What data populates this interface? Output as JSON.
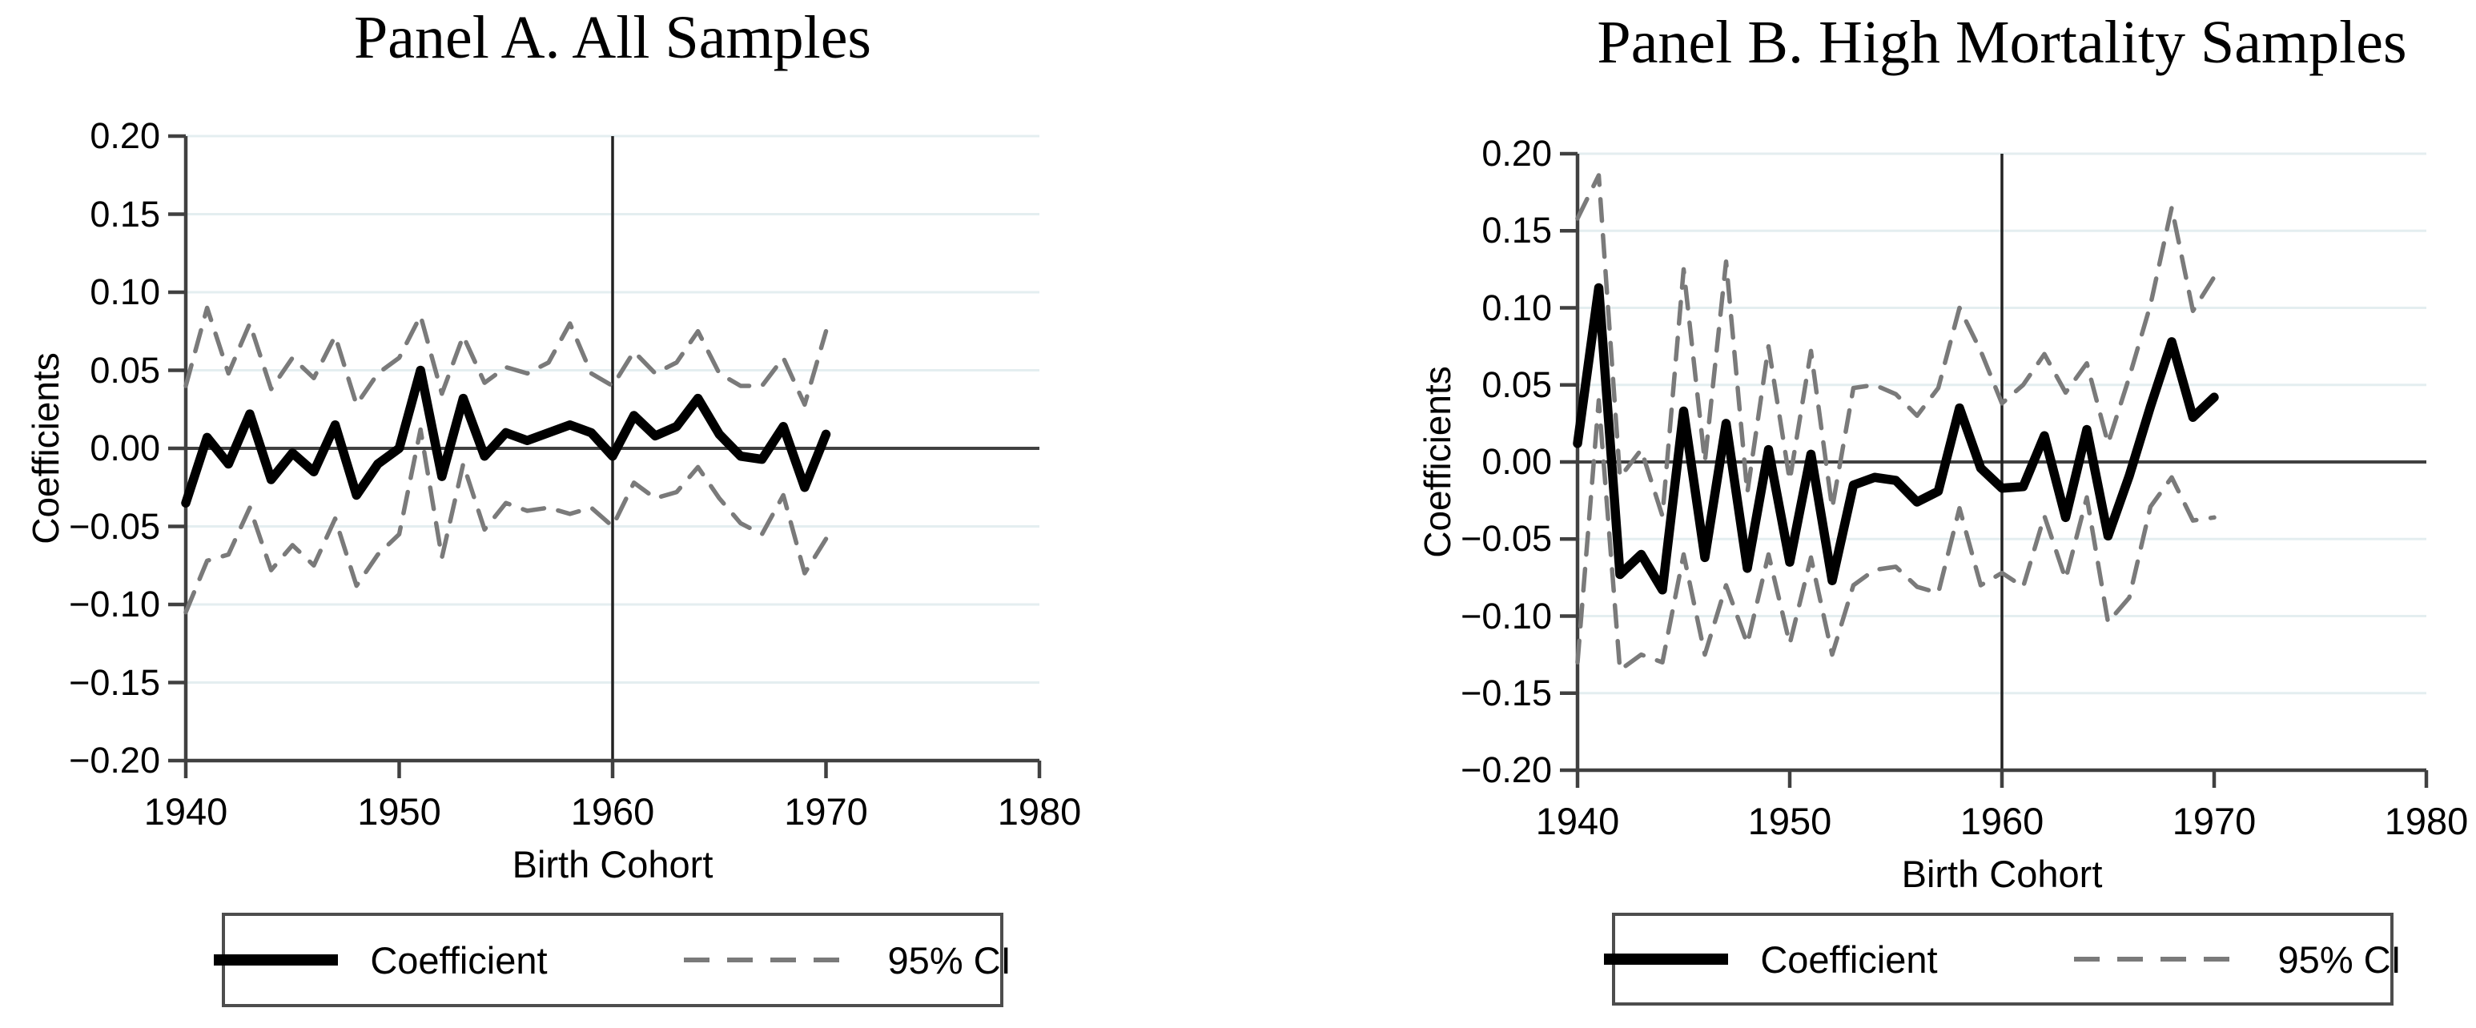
{
  "figure": {
    "background": "#ffffff",
    "accent_colors": {
      "coefficient_line": "#000000",
      "ci_line": "#7a7a7a",
      "axis_line": "#404040",
      "reference_line": "#222222",
      "gridline": "#e4eef0"
    }
  },
  "panels": [
    {
      "title": "Panel A. All Samples",
      "ylabel": "Coefficients",
      "xlabel": "Birth Cohort",
      "y_ticks": [
        "0.20",
        "0.15",
        "0.10",
        "0.05",
        "0.00",
        "−0.05",
        "−0.10",
        "−0.15",
        "−0.20"
      ],
      "x_ticks": [
        "1940",
        "1950",
        "1960",
        "1970",
        "1980"
      ],
      "legend": {
        "coefficient_label": "Coefficient",
        "ci_label": "95% CI"
      }
    },
    {
      "title": "Panel B. High Mortality Samples",
      "ylabel": "Coefficients",
      "xlabel": "Birth Cohort",
      "y_ticks": [
        "0.20",
        "0.15",
        "0.10",
        "0.05",
        "0.00",
        "−0.05",
        "−0.10",
        "−0.15",
        "−0.20"
      ],
      "x_ticks": [
        "1940",
        "1950",
        "1960",
        "1970",
        "1980"
      ],
      "legend": {
        "coefficient_label": "Coefficient",
        "ci_label": "95% CI"
      }
    }
  ],
  "chart_data": [
    {
      "type": "line",
      "title": "Panel A. All Samples",
      "xlabel": "Birth Cohort",
      "ylabel": "Coefficients",
      "xlim": [
        1940,
        1980
      ],
      "ylim": [
        -0.2,
        0.2
      ],
      "x_tick_values": [
        1940,
        1950,
        1960,
        1970,
        1980
      ],
      "y_tick_values": [
        0.2,
        0.15,
        0.1,
        0.05,
        0.0,
        -0.05,
        -0.1,
        -0.15,
        -0.2
      ],
      "grid": "horizontal-light",
      "legend_position": "below",
      "reference_lines": {
        "vertical_x": 1960,
        "horizontal_y": 0
      },
      "x": [
        1940,
        1941,
        1942,
        1943,
        1944,
        1945,
        1946,
        1947,
        1948,
        1949,
        1950,
        1951,
        1952,
        1953,
        1954,
        1955,
        1956,
        1957,
        1958,
        1959,
        1960,
        1961,
        1962,
        1963,
        1964,
        1965,
        1966,
        1967,
        1968,
        1969,
        1970
      ],
      "series": [
        {
          "name": "Coefficient",
          "style": "solid",
          "color": "#000000",
          "values": [
            -0.035,
            0.007,
            -0.01,
            0.022,
            -0.02,
            -0.003,
            -0.015,
            0.015,
            -0.03,
            -0.01,
            0.0,
            0.05,
            -0.018,
            0.032,
            -0.005,
            0.01,
            0.005,
            0.01,
            0.015,
            0.01,
            -0.005,
            0.021,
            0.008,
            0.014,
            0.032,
            0.009,
            -0.005,
            -0.007,
            0.014,
            -0.025,
            0.009
          ]
        },
        {
          "name": "95% CI upper",
          "style": "dashed",
          "color": "#7a7a7a",
          "values": [
            0.04,
            0.09,
            0.048,
            0.08,
            0.038,
            0.058,
            0.045,
            0.072,
            0.028,
            0.048,
            0.058,
            0.085,
            0.035,
            0.072,
            0.042,
            0.052,
            0.048,
            0.055,
            0.08,
            0.048,
            0.04,
            0.062,
            0.048,
            0.055,
            0.075,
            0.048,
            0.04,
            0.04,
            0.058,
            0.028,
            0.075
          ]
        },
        {
          "name": "95% CI lower",
          "style": "dashed",
          "color": "#7a7a7a",
          "values": [
            -0.105,
            -0.072,
            -0.068,
            -0.038,
            -0.078,
            -0.062,
            -0.075,
            -0.045,
            -0.088,
            -0.068,
            -0.055,
            0.012,
            -0.07,
            -0.01,
            -0.052,
            -0.035,
            -0.04,
            -0.038,
            -0.042,
            -0.038,
            -0.05,
            -0.022,
            -0.032,
            -0.028,
            -0.012,
            -0.032,
            -0.048,
            -0.055,
            -0.03,
            -0.08,
            -0.058
          ]
        }
      ]
    },
    {
      "type": "line",
      "title": "Panel B. High Mortality Samples",
      "xlabel": "Birth Cohort",
      "ylabel": "Coefficients",
      "xlim": [
        1940,
        1980
      ],
      "ylim": [
        -0.2,
        0.2
      ],
      "x_tick_values": [
        1940,
        1950,
        1960,
        1970,
        1980
      ],
      "y_tick_values": [
        0.2,
        0.15,
        0.1,
        0.05,
        0.0,
        -0.05,
        -0.1,
        -0.15,
        -0.2
      ],
      "grid": "horizontal-light",
      "legend_position": "below",
      "reference_lines": {
        "vertical_x": 1960,
        "horizontal_y": 0
      },
      "x": [
        1940,
        1941,
        1942,
        1943,
        1944,
        1945,
        1946,
        1947,
        1948,
        1949,
        1950,
        1951,
        1952,
        1953,
        1954,
        1955,
        1956,
        1957,
        1958,
        1959,
        1960,
        1961,
        1962,
        1963,
        1964,
        1965,
        1966,
        1967,
        1968,
        1969,
        1970
      ],
      "series": [
        {
          "name": "Coefficient",
          "style": "solid",
          "color": "#000000",
          "values": [
            0.012,
            0.113,
            -0.073,
            -0.06,
            -0.083,
            0.033,
            -0.062,
            0.025,
            -0.069,
            0.008,
            -0.065,
            0.005,
            -0.077,
            -0.015,
            -0.01,
            -0.012,
            -0.026,
            -0.019,
            0.035,
            -0.004,
            -0.017,
            -0.016,
            0.017,
            -0.036,
            0.021,
            -0.048,
            -0.009,
            0.036,
            0.078,
            0.029,
            0.042
          ]
        },
        {
          "name": "95% CI upper",
          "style": "dashed",
          "color": "#7a7a7a",
          "values": [
            0.158,
            0.186,
            -0.01,
            0.008,
            -0.035,
            0.125,
            0.0,
            0.13,
            -0.02,
            0.075,
            -0.012,
            0.072,
            -0.03,
            0.048,
            0.05,
            0.044,
            0.03,
            0.048,
            0.1,
            0.072,
            0.038,
            0.05,
            0.07,
            0.045,
            0.064,
            0.012,
            0.055,
            0.102,
            0.165,
            0.098,
            0.12
          ]
        },
        {
          "name": "95% CI lower",
          "style": "dashed",
          "color": "#7a7a7a",
          "values": [
            -0.13,
            0.04,
            -0.135,
            -0.125,
            -0.13,
            -0.06,
            -0.125,
            -0.08,
            -0.118,
            -0.06,
            -0.118,
            -0.062,
            -0.125,
            -0.08,
            -0.07,
            -0.068,
            -0.081,
            -0.085,
            -0.03,
            -0.08,
            -0.072,
            -0.081,
            -0.035,
            -0.076,
            -0.023,
            -0.104,
            -0.088,
            -0.029,
            -0.01,
            -0.038,
            -0.036
          ]
        }
      ]
    }
  ]
}
